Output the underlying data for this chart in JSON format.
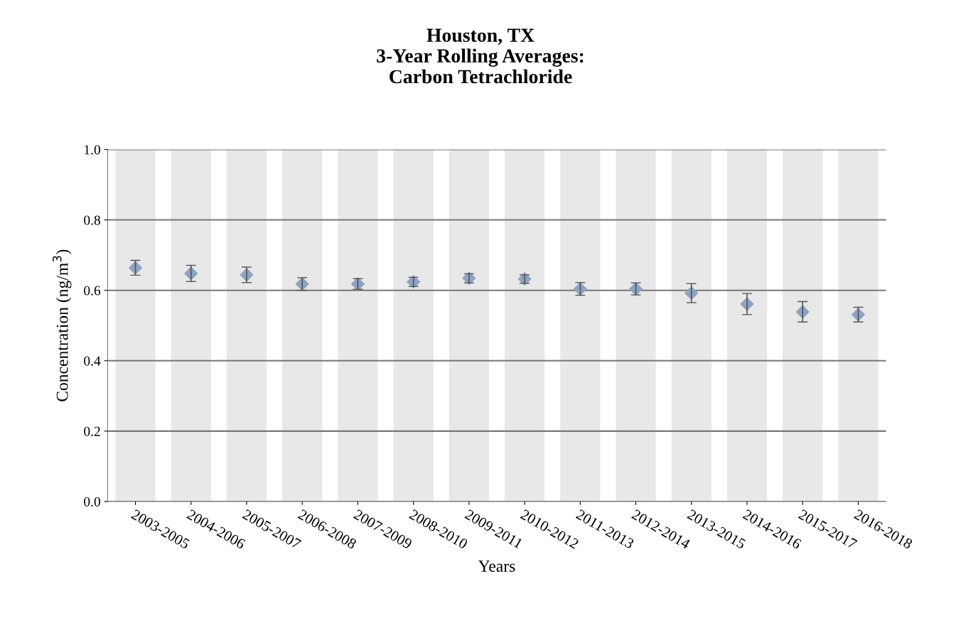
{
  "chart_data": {
    "type": "scatter",
    "title": "Houston, TX\n3-Year Rolling Averages:\nCarbon Tetrachloride",
    "xlabel": "Years",
    "ylabel": "Concentration (ng/m$^{3}$)",
    "categories": [
      "2003-2005",
      "2004-2006",
      "2005-2007",
      "2006-2008",
      "2007-2009",
      "2008-2010",
      "2009-2011",
      "2010-2012",
      "2011-2013",
      "2012-2014",
      "2013-2015",
      "2014-2016",
      "2015-2017",
      "2016-2018"
    ],
    "series": [
      {
        "type": "bar",
        "color": "#e8e8e8",
        "values": [
          1.0,
          1.0,
          1.0,
          1.0,
          1.0,
          1.0,
          1.0,
          1.0,
          1.0,
          1.0,
          1.0,
          1.0,
          1.0,
          1.0
        ]
      },
      {
        "color": "#8ea3c2",
        "values": [
          0.664,
          0.648,
          0.644,
          0.618,
          0.618,
          0.624,
          0.634,
          0.632,
          0.604,
          0.604,
          0.592,
          0.561,
          0.539,
          0.531
        ],
        "errors": [
          0.021,
          0.023,
          0.022,
          0.018,
          0.015,
          0.013,
          0.013,
          0.012,
          0.018,
          0.017,
          0.027,
          0.03,
          0.029,
          0.021
        ]
      }
    ],
    "ylim": [
      0,
      1.0
    ],
    "yticks": [
      {
        "value": 0,
        "label": "0.0"
      },
      {
        "value": 0.2,
        "label": "0.2"
      },
      {
        "value": 0.4,
        "label": "0.4"
      },
      {
        "value": 0.6,
        "label": "0.6"
      },
      {
        "value": 0.8,
        "label": "0.8"
      },
      {
        "value": 1.0,
        "label": "1.0"
      }
    ],
    "grid": "y",
    "marker": "diamond"
  }
}
